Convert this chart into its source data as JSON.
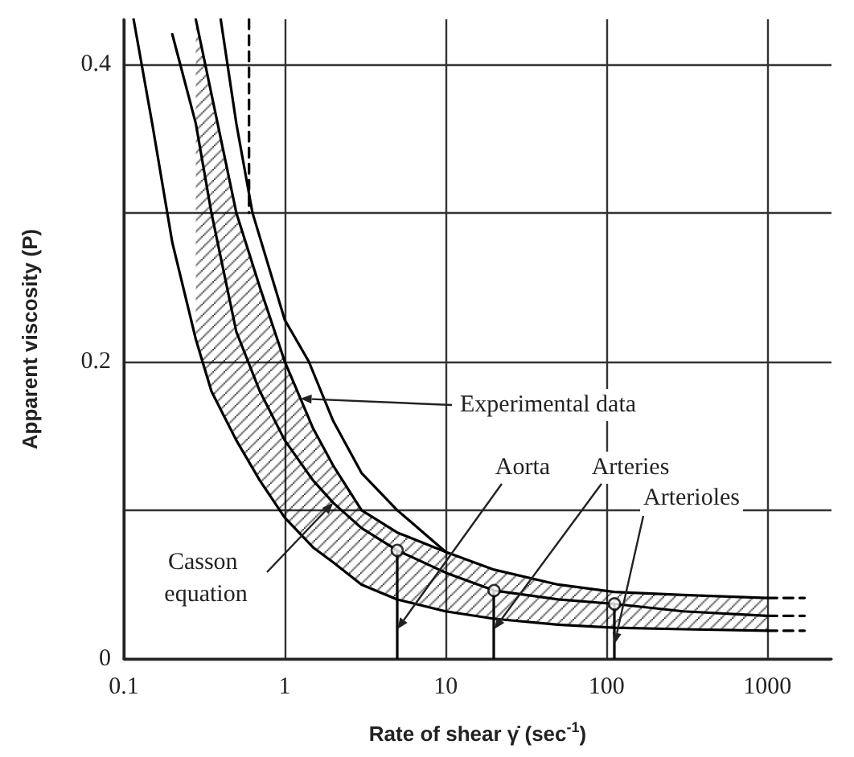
{
  "chart_data": {
    "type": "line",
    "xlabel": "Rate of shear γ̇ (sec$^{-1}$)",
    "ylabel": "Apparent viscosity (P)",
    "log": "x",
    "grid": true,
    "marker": "none",
    "line_style": "solid",
    "xlim": [
      0.1,
      2500
    ],
    "xticks": [
      0.1,
      1,
      10,
      100,
      1000
    ],
    "ylim": [
      0,
      0.43
    ],
    "yticks": [
      0,
      {
        "value": 0.1,
        "label": null
      },
      0.2,
      {
        "value": 0.3,
        "label": null
      },
      0.4
    ],
    "series": [
      {
        "color": "#000000",
        "x": [
          0.2,
          0.28,
          0.35,
          0.5,
          0.7,
          1,
          1.5,
          2,
          3,
          5,
          10,
          20,
          50,
          112,
          300,
          1000
        ],
        "values": [
          0.42,
          0.36,
          0.3,
          0.22,
          0.18,
          0.147,
          0.12,
          0.105,
          0.088,
          0.073,
          0.058,
          0.046,
          0.04,
          0.037,
          0.032,
          0.029
        ],
        "lower": [
          null,
          0.215,
          0.18,
          0.147,
          0.12,
          0.095,
          0.075,
          0.065,
          0.05,
          0.04,
          0.032,
          0.027,
          0.023,
          0.021,
          0.02,
          0.019
        ],
        "upper": [
          null,
          0.43,
          0.38,
          0.3,
          0.25,
          0.2,
          0.155,
          0.13,
          0.1,
          0.085,
          0.072,
          0.06,
          0.05,
          0.045,
          0.043,
          0.041
        ]
      },
      {
        "color": "#000000",
        "x": [
          0.115,
          0.15,
          0.2,
          0.28,
          0.35,
          0.5,
          0.7,
          1,
          1.5,
          2,
          3,
          5,
          10,
          20,
          50,
          112,
          300,
          1000
        ],
        "values": [
          0.43,
          0.36,
          0.28,
          0.215,
          0.18,
          0.147,
          0.12,
          0.095,
          0.075,
          0.065,
          0.05,
          0.04,
          0.032,
          0.027,
          0.023,
          0.021,
          0.02,
          0.019
        ]
      },
      {
        "color": "#000000",
        "x": [
          0.28,
          0.35,
          0.5,
          0.7,
          1,
          1.5,
          2,
          3,
          5,
          10,
          20,
          50,
          112,
          300,
          1000
        ],
        "values": [
          0.43,
          0.38,
          0.3,
          0.25,
          0.2,
          0.155,
          0.13,
          0.1,
          0.085,
          0.072,
          0.06,
          0.05,
          0.045,
          0.043,
          0.041
        ]
      },
      {
        "color": "#000000",
        "x": [
          0.4,
          0.5,
          0.63,
          1,
          1.41,
          2,
          3,
          5,
          10
        ],
        "values": [
          0.43,
          0.36,
          0.3,
          0.228,
          0.2,
          0.16,
          0.125,
          0.1,
          0.072
        ]
      },
      {
        "color": "#000000",
        "line_style": "dashed",
        "x": [
          0.6,
          0.6
        ],
        "values": [
          0.43,
          0.3
        ]
      },
      {
        "color": "#000000",
        "line_style": "dashed",
        "x": [
          1000,
          1700
        ],
        "values": [
          0.041,
          0.041
        ]
      },
      {
        "color": "#000000",
        "line_style": "dashed",
        "x": [
          1000,
          1700
        ],
        "values": [
          0.029,
          0.029
        ]
      },
      {
        "color": "#000000",
        "line_style": "dashed",
        "x": [
          1000,
          1700
        ],
        "values": [
          0.019,
          0.019
        ]
      },
      {
        "type": "scatter",
        "marker": "circle",
        "color": "#000000",
        "x": [
          5,
          20,
          112
        ],
        "values": [
          0.073,
          0.046,
          0.037
        ],
        "errors": [
          [
            0.073,
            0
          ],
          [
            0.046,
            0
          ],
          [
            0.037,
            0
          ]
        ]
      }
    ],
    "annotations": [
      {
        "text": "Experimental data",
        "x": 1.25,
        "y": 0.175
      },
      {
        "text": "Aorta",
        "x": 5,
        "y": 0.02
      },
      {
        "text": "Arteries",
        "x": 20,
        "y": 0.02
      },
      {
        "text": "Arterioles",
        "x": 112,
        "y": 0.01
      },
      {
        "text": "Casson equation",
        "x": 2,
        "y": 0.105
      }
    ]
  }
}
